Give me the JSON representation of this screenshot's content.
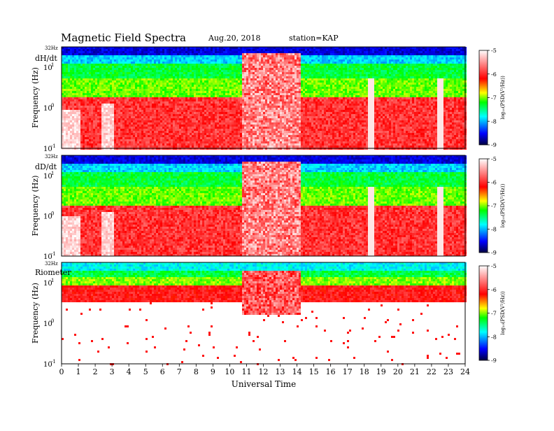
{
  "header": {
    "title": "Magnetic  Field  Spectra",
    "date": "Aug.20, 2018",
    "station": "station=KAP"
  },
  "chart_data": {
    "type": "heatmap",
    "x_axis": {
      "label": "Universal Time",
      "range": [
        0,
        24
      ],
      "ticks": [
        "0",
        "1",
        "2",
        "3",
        "4",
        "5",
        "6",
        "7",
        "8",
        "9",
        "10",
        "11",
        "12",
        "13",
        "14",
        "15",
        "16",
        "17",
        "18",
        "19",
        "20",
        "21",
        "22",
        "23",
        "24"
      ]
    },
    "panels": [
      {
        "name": "dH/dt",
        "ylabel": "Frequency (Hz)",
        "top_label": "32Hz",
        "y_ticks": [
          {
            "base": "10",
            "exp": "1",
            "value": 10
          },
          {
            "base": "10",
            "exp": "0",
            "value": 1
          },
          {
            "base": "10",
            "exp": "-1",
            "value": 0.1
          }
        ],
        "scale": "log",
        "yrange_hz": [
          0.1,
          32
        ]
      },
      {
        "name": "dD/dt",
        "ylabel": "Frequency (Hz)",
        "top_label": "32Hz",
        "y_ticks": [
          {
            "base": "10",
            "exp": "1",
            "value": 10
          },
          {
            "base": "10",
            "exp": "0",
            "value": 1
          },
          {
            "base": "10",
            "exp": "-1",
            "value": 0.1
          }
        ],
        "scale": "log",
        "yrange_hz": [
          0.1,
          32
        ]
      },
      {
        "name": "Riometer",
        "ylabel": "Frequency (Hz)",
        "top_label": "32Hz",
        "y_ticks": [
          {
            "base": "10",
            "exp": "1",
            "value": 10
          },
          {
            "base": "10",
            "exp": "0",
            "value": 1
          },
          {
            "base": "10",
            "exp": "-1",
            "value": 0.1
          }
        ],
        "scale": "log",
        "yrange_hz": [
          0.1,
          32
        ]
      }
    ],
    "colorbar": {
      "label": "log₁₀(PSD(V²/Hz))",
      "range": [
        -9,
        -5
      ],
      "ticks": [
        "-5",
        "-6",
        "-7",
        "-8",
        "-9"
      ],
      "colors": [
        "#000050",
        "#0000ff",
        "#00ffff",
        "#00ff00",
        "#ffff00",
        "#ff0000",
        "#ffffff"
      ]
    },
    "activity_ut_hours": {
      "strong_broadband_band": [
        10.7,
        14.2
      ],
      "spikes": [
        18.3,
        22.5
      ]
    }
  }
}
